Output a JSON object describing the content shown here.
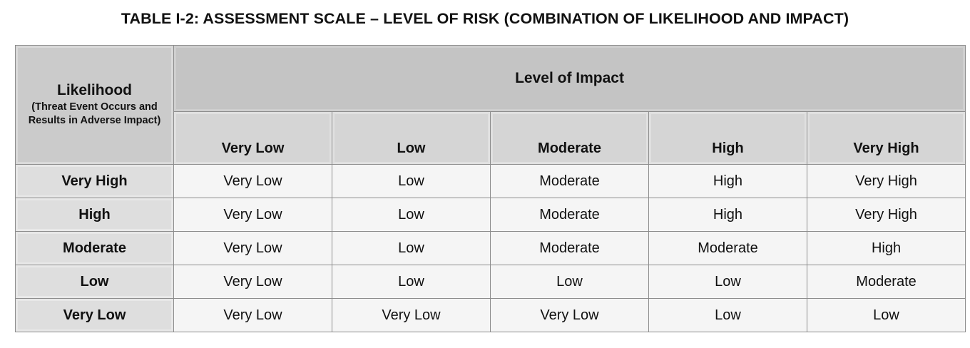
{
  "title": "TABLE I-2: ASSESSMENT SCALE – LEVEL OF RISK (COMBINATION OF LIKELIHOOD AND IMPACT)",
  "corner": {
    "label": "Likelihood",
    "sublabel": "(Threat Event Occurs and Results in Adverse Impact)"
  },
  "impact_header": "Level of Impact",
  "columns": [
    "Very Low",
    "Low",
    "Moderate",
    "High",
    "Very High"
  ],
  "rows": [
    {
      "likelihood": "Very High",
      "cells": [
        "Very Low",
        "Low",
        "Moderate",
        "High",
        "Very High"
      ]
    },
    {
      "likelihood": "High",
      "cells": [
        "Very Low",
        "Low",
        "Moderate",
        "High",
        "Very High"
      ]
    },
    {
      "likelihood": "Moderate",
      "cells": [
        "Very Low",
        "Low",
        "Moderate",
        "Moderate",
        "High"
      ]
    },
    {
      "likelihood": "Low",
      "cells": [
        "Very Low",
        "Low",
        "Low",
        "Low",
        "Moderate"
      ]
    },
    {
      "likelihood": "Very Low",
      "cells": [
        "Very Low",
        "Very Low",
        "Very Low",
        "Low",
        "Low"
      ]
    }
  ],
  "colors": {
    "header_dark": "#c4c4c4",
    "header_mid": "#d5d5d5",
    "row_header": "#dedede",
    "cell_bg": "#f5f5f5",
    "border": "#8c8c8c"
  }
}
